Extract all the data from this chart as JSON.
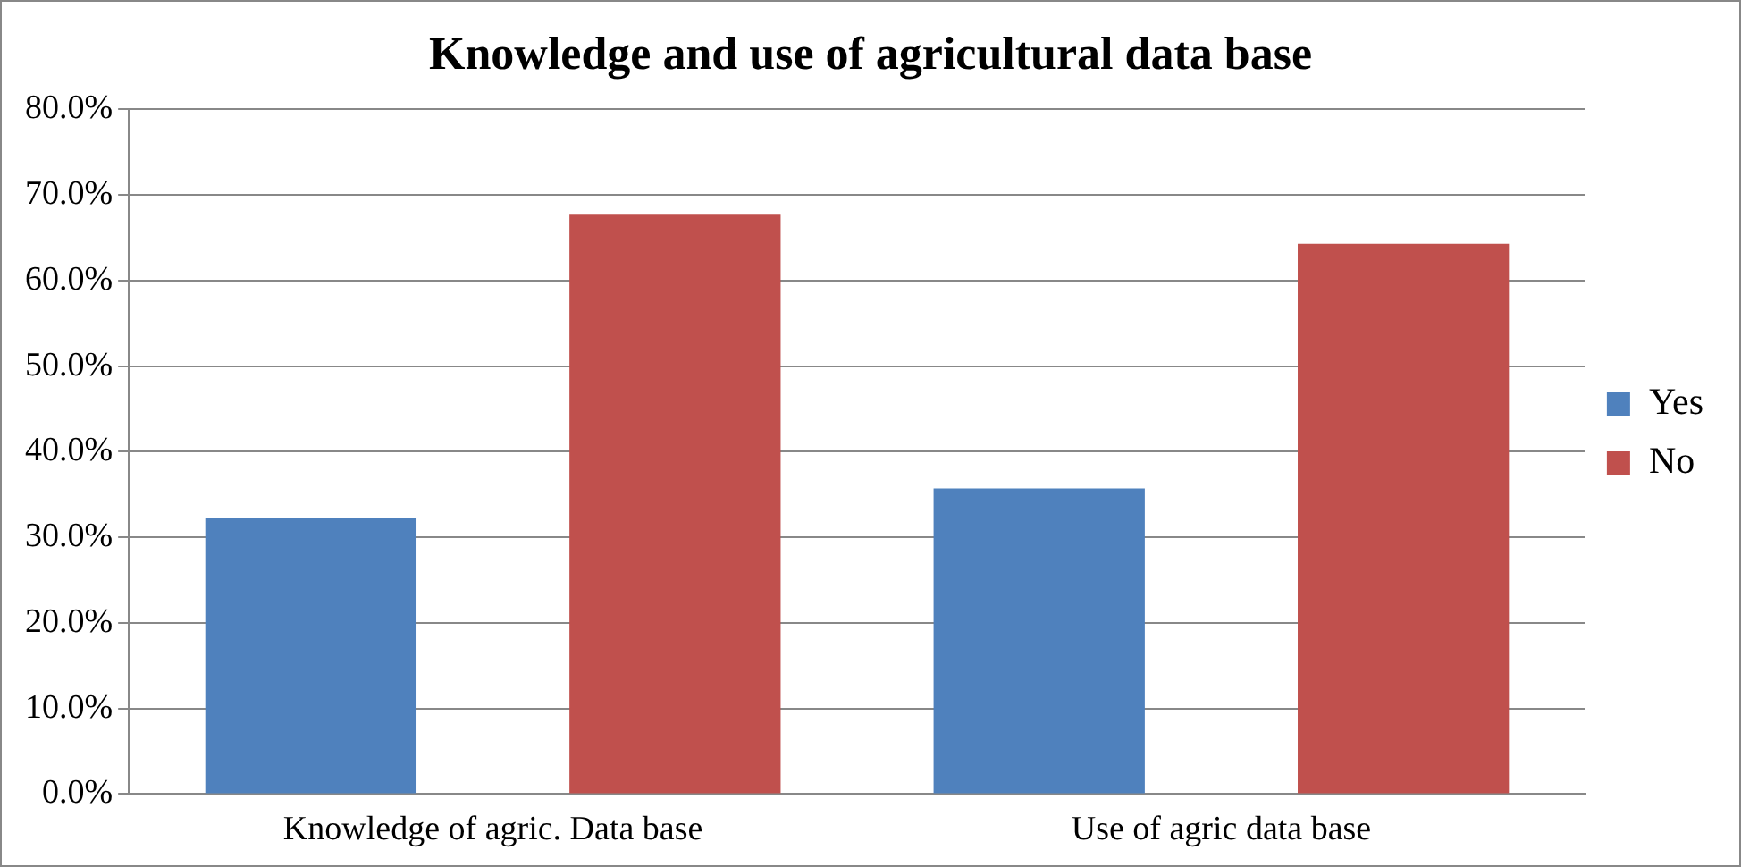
{
  "chart_data": {
    "type": "bar",
    "title": "Knowledge and use of agricultural data base",
    "categories": [
      "Knowledge of agric. Data base",
      "Use of agric data base"
    ],
    "series": [
      {
        "name": "Yes",
        "color": "#4f81bd",
        "values": [
          32.2,
          35.7
        ]
      },
      {
        "name": "No",
        "color": "#c0504d",
        "values": [
          67.8,
          64.3
        ]
      }
    ],
    "ylim": [
      0,
      80
    ],
    "yticks": [
      {
        "value": 0,
        "label": "0.0%"
      },
      {
        "value": 10,
        "label": "10.0%"
      },
      {
        "value": 20,
        "label": "20.0%"
      },
      {
        "value": 30,
        "label": "30.0%"
      },
      {
        "value": 40,
        "label": "40.0%"
      },
      {
        "value": 50,
        "label": "50.0%"
      },
      {
        "value": 60,
        "label": "60.0%"
      },
      {
        "value": 70,
        "label": "70.0%"
      },
      {
        "value": 80,
        "label": "80.0%"
      }
    ],
    "grid": "y",
    "legend": "right"
  }
}
